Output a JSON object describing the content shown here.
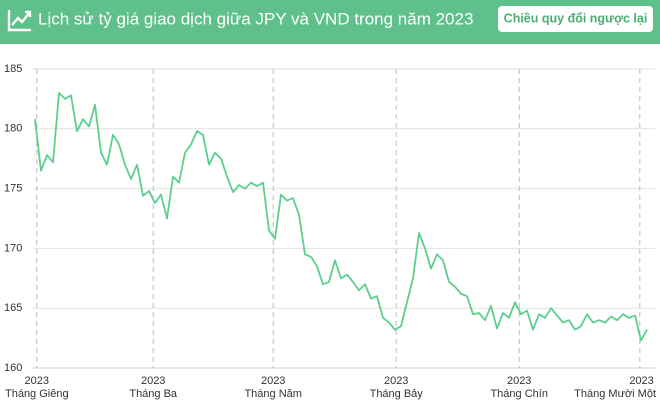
{
  "chart_data": {
    "type": "line",
    "title": "Lịch sử tỷ giá giao dịch giữa JPY và VND trong năm 2023",
    "button_label": "Chiều quy đổi ngược lại",
    "color": "#5ccf8e",
    "values": [
      180.8,
      176.5,
      177.8,
      177.2,
      183,
      182.5,
      182.8,
      179.8,
      180.8,
      180.2,
      182,
      178,
      177,
      179.5,
      178.7,
      177,
      175.8,
      177,
      174.4,
      174.8,
      173.8,
      174.5,
      172.5,
      176,
      175.5,
      178,
      178.7,
      179.8,
      179.5,
      177,
      178,
      177.5,
      176,
      174.7,
      175.3,
      175,
      175.5,
      175.2,
      175.5,
      171.5,
      170.8,
      174.5,
      174,
      174.2,
      172.8,
      169.5,
      169.3,
      168.5,
      167,
      167.2,
      169,
      167.5,
      167.8,
      167.2,
      166.5,
      167,
      165.8,
      166,
      164.2,
      163.8,
      163.2,
      163.5,
      165.5,
      167.5,
      171.3,
      170,
      168.3,
      169.5,
      169,
      167.2,
      166.8,
      166.2,
      166,
      164.5,
      164.6,
      164,
      165.2,
      163.3,
      164.6,
      164.2,
      165.5,
      164.5,
      164.8,
      163.2,
      164.5,
      164.2,
      165,
      164.4,
      163.8,
      164,
      163.2,
      163.5,
      164.5,
      163.8,
      164,
      163.8,
      164.3,
      164,
      164.5,
      164.2,
      164.4,
      162.3,
      163.2
    ],
    "xlim": [
      0,
      102
    ],
    "xticks": [
      {
        "value": 0.3,
        "label": [
          "2023",
          "Tháng Giêng"
        ]
      },
      {
        "value": 19.7,
        "label": [
          "2023",
          "Tháng Ba"
        ]
      },
      {
        "value": 39.7,
        "label": [
          "2023",
          "Tháng Năm"
        ]
      },
      {
        "value": 60.2,
        "label": [
          "2023",
          "Tháng Bảy"
        ]
      },
      {
        "value": 80.7,
        "label": [
          "2023",
          "Tháng Chín"
        ]
      },
      {
        "value": 100.8,
        "label": [
          "2023",
          "Tháng Mười Một"
        ]
      }
    ],
    "ylim": [
      160,
      185
    ],
    "yticks": [
      160,
      165,
      170,
      175,
      180,
      185
    ],
    "grid": true
  }
}
